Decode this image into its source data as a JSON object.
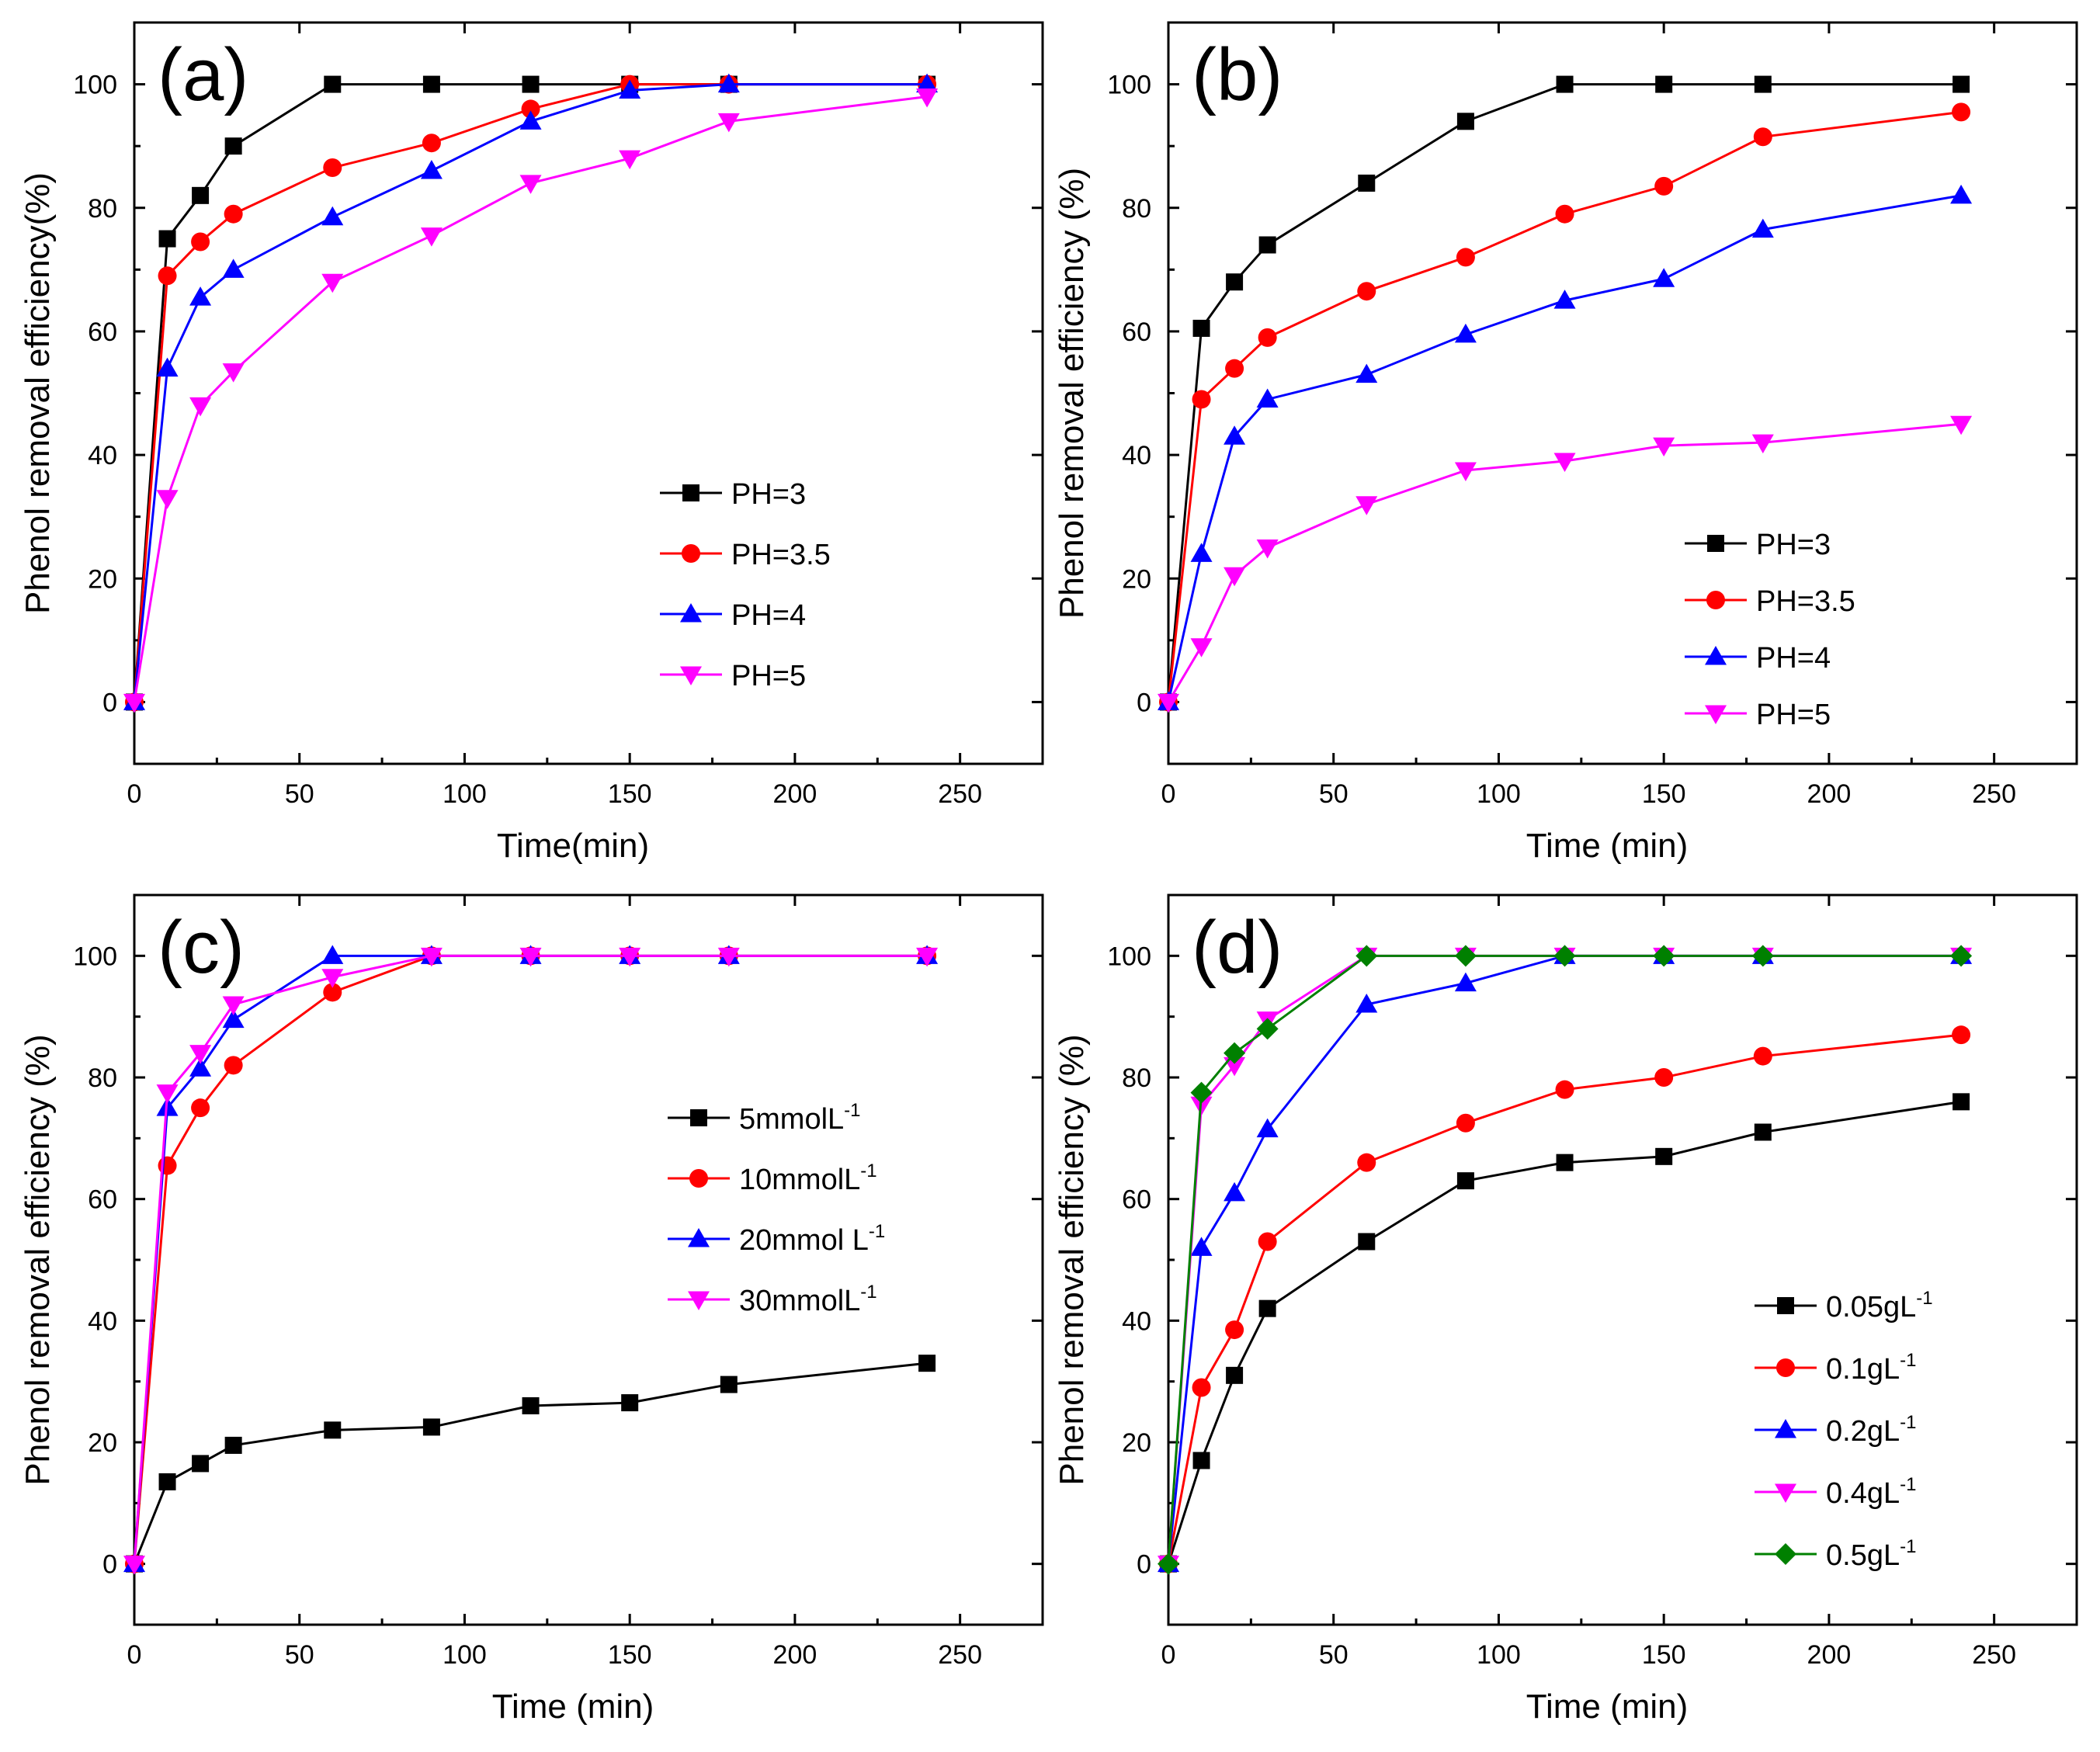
{
  "colors": {
    "black": "#000000",
    "red": "#ff0000",
    "blue": "#0000ff",
    "magenta": "#ff00ff",
    "green": "#008000"
  },
  "chart_data": [
    {
      "id": "a",
      "type": "line",
      "panel_label": "(a)",
      "xlabel": "Time(min)",
      "ylabel": "Phenol removal efficiency(%)",
      "xlim": [
        0,
        275
      ],
      "ylim": [
        -10,
        110
      ],
      "xticks": [
        0,
        50,
        100,
        150,
        200,
        250
      ],
      "yticks": [
        0,
        20,
        40,
        60,
        80,
        100
      ],
      "legend_position": "center-right",
      "x": [
        0,
        10,
        20,
        30,
        60,
        90,
        120,
        150,
        180,
        240
      ],
      "series": [
        {
          "name": "PH=3",
          "sup": "",
          "color": "#000000",
          "marker": "square",
          "values": [
            0,
            75,
            82,
            90,
            100,
            100,
            100,
            100,
            100,
            100
          ]
        },
        {
          "name": "PH=3.5",
          "sup": "",
          "color": "#ff0000",
          "marker": "circle",
          "values": [
            0,
            69,
            74.5,
            79,
            86.5,
            90.5,
            96,
            100,
            100,
            100
          ]
        },
        {
          "name": "PH=4",
          "sup": "",
          "color": "#0000ff",
          "marker": "triangle-up",
          "values": [
            0,
            54,
            65.5,
            70,
            78.5,
            86,
            94,
            99,
            100,
            100
          ]
        },
        {
          "name": "PH=5",
          "sup": "",
          "color": "#ff00ff",
          "marker": "triangle-down",
          "values": [
            0,
            33,
            48,
            53.5,
            68,
            75.5,
            84,
            88,
            94,
            98
          ]
        }
      ]
    },
    {
      "id": "b",
      "type": "line",
      "panel_label": "(b)",
      "xlabel": "Time (min)",
      "ylabel": "Phenol removal efficiency (%)",
      "xlim": [
        0,
        275
      ],
      "ylim": [
        -10,
        110
      ],
      "xticks": [
        0,
        50,
        100,
        150,
        200,
        250
      ],
      "yticks": [
        0,
        20,
        40,
        60,
        80,
        100
      ],
      "legend_position": "bottom-right",
      "x": [
        0,
        10,
        20,
        30,
        60,
        90,
        120,
        150,
        180,
        240
      ],
      "series": [
        {
          "name": "PH=3",
          "sup": "",
          "color": "#000000",
          "marker": "square",
          "values": [
            0,
            60.5,
            68,
            74,
            84,
            94,
            100,
            100,
            100,
            100
          ]
        },
        {
          "name": "PH=3.5",
          "sup": "",
          "color": "#ff0000",
          "marker": "circle",
          "values": [
            0,
            49,
            54,
            59,
            66.5,
            72,
            79,
            83.5,
            91.5,
            95.5
          ]
        },
        {
          "name": "PH=4",
          "sup": "",
          "color": "#0000ff",
          "marker": "triangle-up",
          "values": [
            0,
            24,
            43,
            49,
            53,
            59.5,
            65,
            68.5,
            76.5,
            82
          ]
        },
        {
          "name": "PH=5",
          "sup": "",
          "color": "#ff00ff",
          "marker": "triangle-down",
          "values": [
            0,
            9,
            20.5,
            25,
            32,
            37.5,
            39,
            41.5,
            42,
            45
          ]
        }
      ]
    },
    {
      "id": "c",
      "type": "line",
      "panel_label": "(c)",
      "xlabel": "Time (min)",
      "ylabel": "Phenol removal efficiency (%)",
      "xlim": [
        0,
        275
      ],
      "ylim": [
        -10,
        110
      ],
      "xticks": [
        0,
        50,
        100,
        150,
        200,
        250
      ],
      "yticks": [
        0,
        20,
        40,
        60,
        80,
        100
      ],
      "legend_position": "center-right",
      "x": [
        0,
        10,
        20,
        30,
        60,
        90,
        120,
        150,
        180,
        240
      ],
      "series": [
        {
          "name": " 5mmolL",
          "sup": "-1",
          "color": "#000000",
          "marker": "square",
          "values": [
            0,
            13.5,
            16.5,
            19.5,
            22,
            22.5,
            26,
            26.5,
            29.5,
            33
          ]
        },
        {
          "name": "10mmolL",
          "sup": "-1",
          "color": "#ff0000",
          "marker": "circle",
          "values": [
            0,
            65.5,
            75,
            82,
            94,
            100,
            100,
            100,
            100,
            100
          ]
        },
        {
          "name": "20mmol L",
          "sup": "-1",
          "color": "#0000ff",
          "marker": "triangle-up",
          "values": [
            0,
            75,
            81.5,
            89.5,
            100,
            100,
            100,
            100,
            100,
            100
          ]
        },
        {
          "name": "30mmolL",
          "sup": "-1",
          "color": "#ff00ff",
          "marker": "triangle-down",
          "values": [
            0,
            77.5,
            84,
            92,
            96.5,
            100,
            100,
            100,
            100,
            100
          ]
        }
      ]
    },
    {
      "id": "d",
      "type": "line",
      "panel_label": "(d)",
      "xlabel": "Time (min)",
      "ylabel": "Phenol removal efficiency (%)",
      "xlim": [
        0,
        275
      ],
      "ylim": [
        -10,
        110
      ],
      "xticks": [
        0,
        50,
        100,
        150,
        200,
        250
      ],
      "yticks": [
        0,
        20,
        40,
        60,
        80,
        100
      ],
      "legend_position": "bottom-right",
      "x": [
        0,
        10,
        20,
        30,
        60,
        90,
        120,
        150,
        180,
        240
      ],
      "series": [
        {
          "name": "0.05gL",
          "sup": "-1",
          "color": "#000000",
          "marker": "square",
          "values": [
            0,
            17,
            31,
            42,
            53,
            63,
            66,
            67,
            71,
            76
          ]
        },
        {
          "name": "0.1gL",
          "sup": "-1",
          "color": "#ff0000",
          "marker": "circle",
          "values": [
            0,
            29,
            38.5,
            53,
            66,
            72.5,
            78,
            80,
            83.5,
            87
          ]
        },
        {
          "name": "0.2gL",
          "sup": "-1",
          "color": "#0000ff",
          "marker": "triangle-up",
          "values": [
            0,
            52,
            61,
            71.5,
            92,
            95.5,
            100,
            100,
            100,
            100
          ]
        },
        {
          "name": "0.4gL",
          "sup": "-1",
          "color": "#ff00ff",
          "marker": "triangle-down",
          "values": [
            0,
            75.5,
            82,
            89.5,
            100,
            100,
            100,
            100,
            100,
            100
          ]
        },
        {
          "name": "0.5gL",
          "sup": "-1",
          "color": "#008000",
          "marker": "diamond",
          "values": [
            0,
            77.5,
            84,
            88,
            100,
            100,
            100,
            100,
            100,
            100
          ]
        }
      ]
    }
  ]
}
